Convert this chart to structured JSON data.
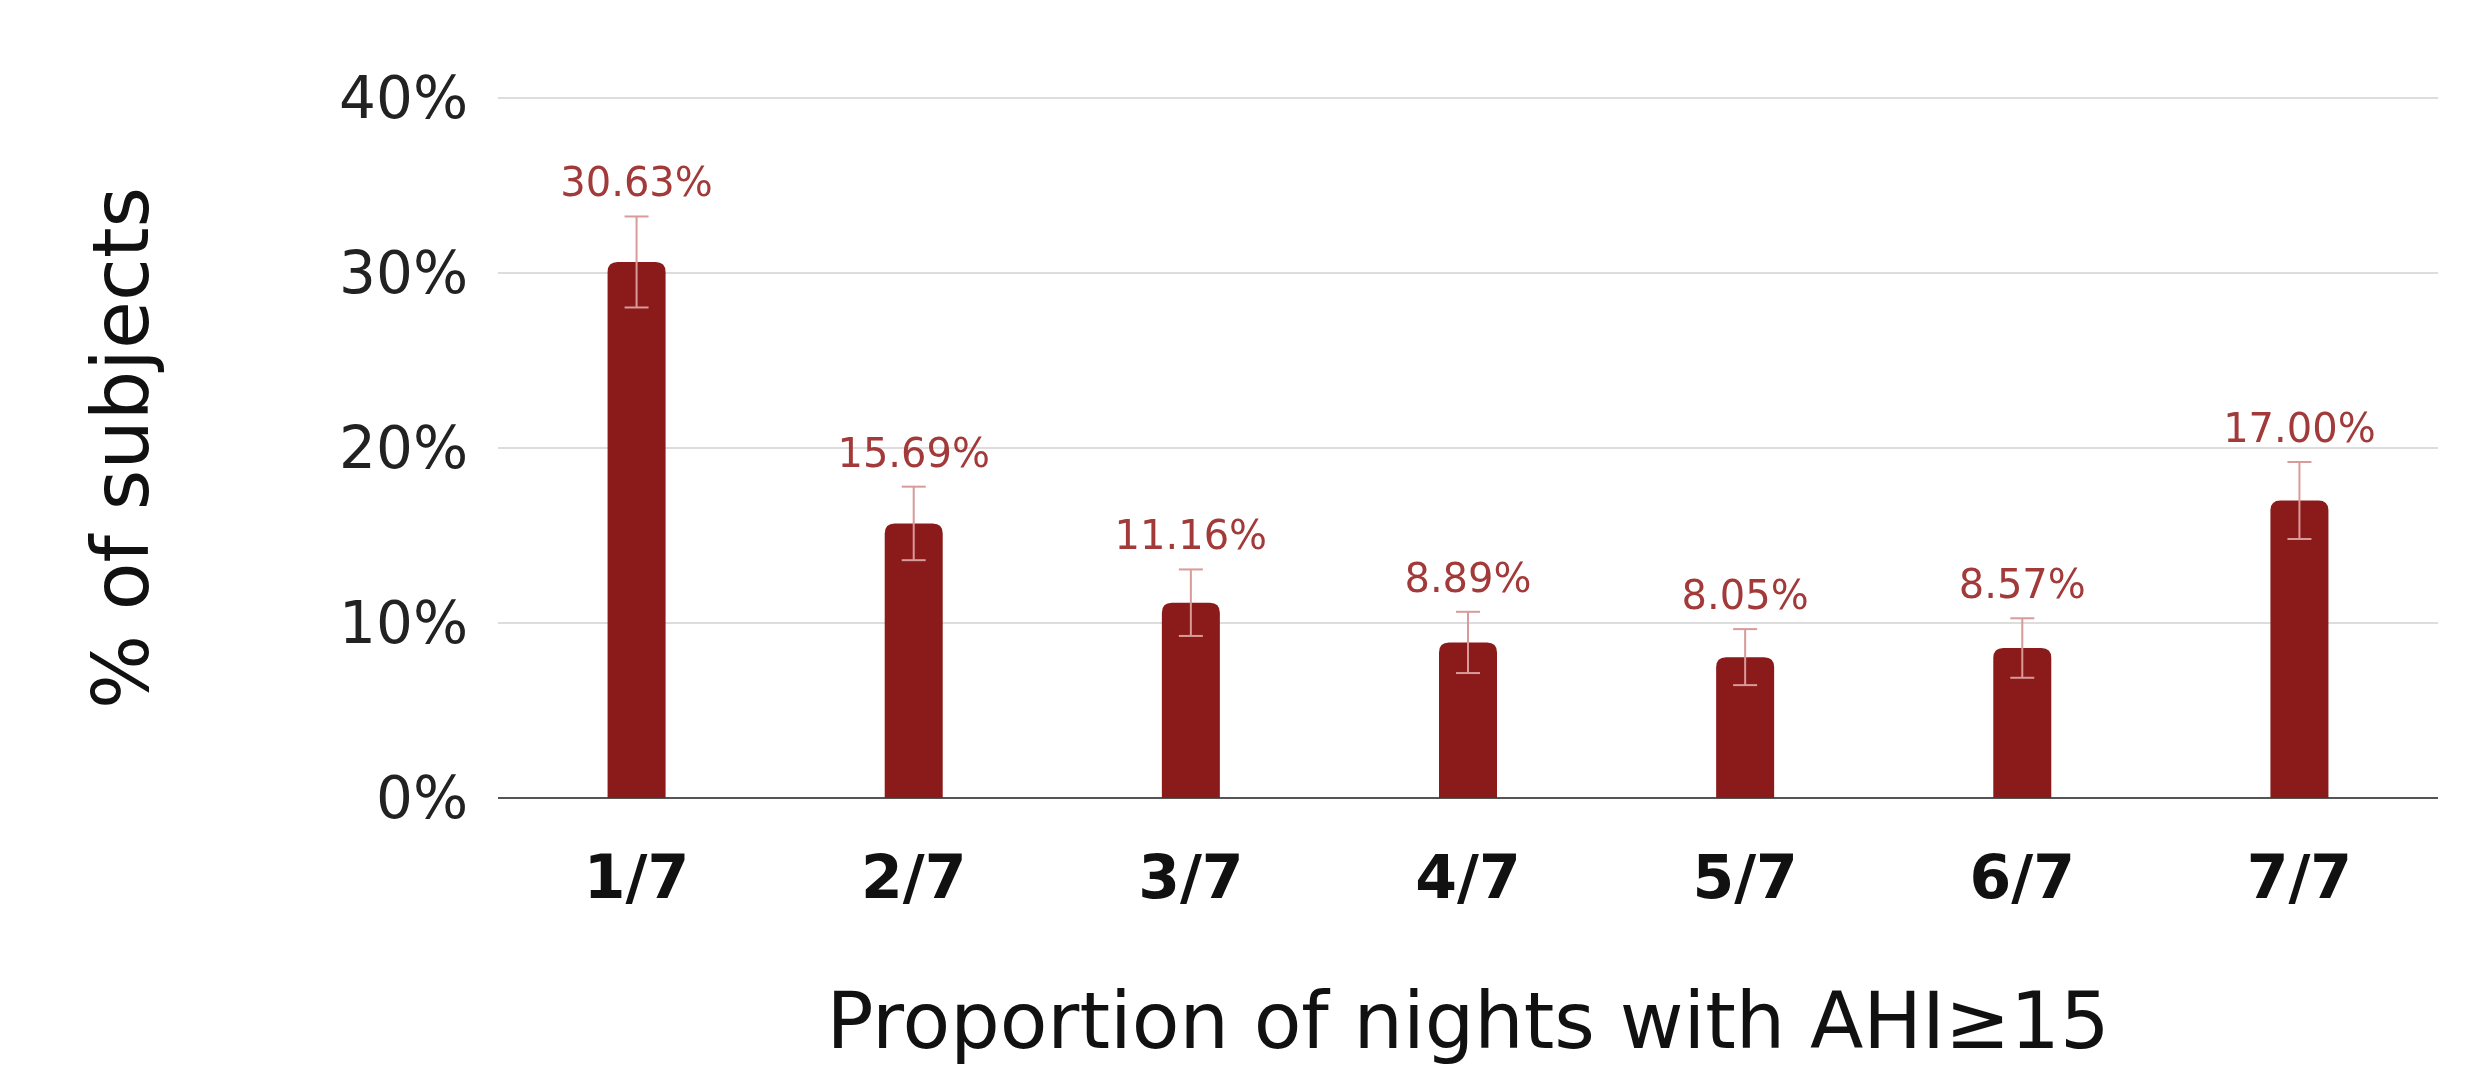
{
  "chart_data": {
    "type": "bar",
    "xlabel": "Proportion of nights with AHI≥15",
    "ylabel": "% of subjects",
    "categories": [
      "1/7",
      "2/7",
      "3/7",
      "4/7",
      "5/7",
      "6/7",
      "7/7"
    ],
    "values": [
      30.63,
      15.69,
      11.16,
      8.89,
      8.05,
      8.57,
      17.0
    ],
    "errors": [
      2.6,
      2.1,
      1.9,
      1.75,
      1.6,
      1.7,
      2.2
    ],
    "value_labels": [
      "30.63%",
      "15.69%",
      "11.16%",
      "8.89%",
      "8.05%",
      "8.57%",
      "17.00%"
    ],
    "color": "#8b1a1a",
    "ylim": [
      0,
      40
    ],
    "yticks": [
      {
        "value": 0,
        "label": "0%"
      },
      {
        "value": 10,
        "label": "10%"
      },
      {
        "value": 20,
        "label": "20%"
      },
      {
        "value": 30,
        "label": "30%"
      },
      {
        "value": 40,
        "label": "40%"
      }
    ],
    "grid": "y"
  }
}
